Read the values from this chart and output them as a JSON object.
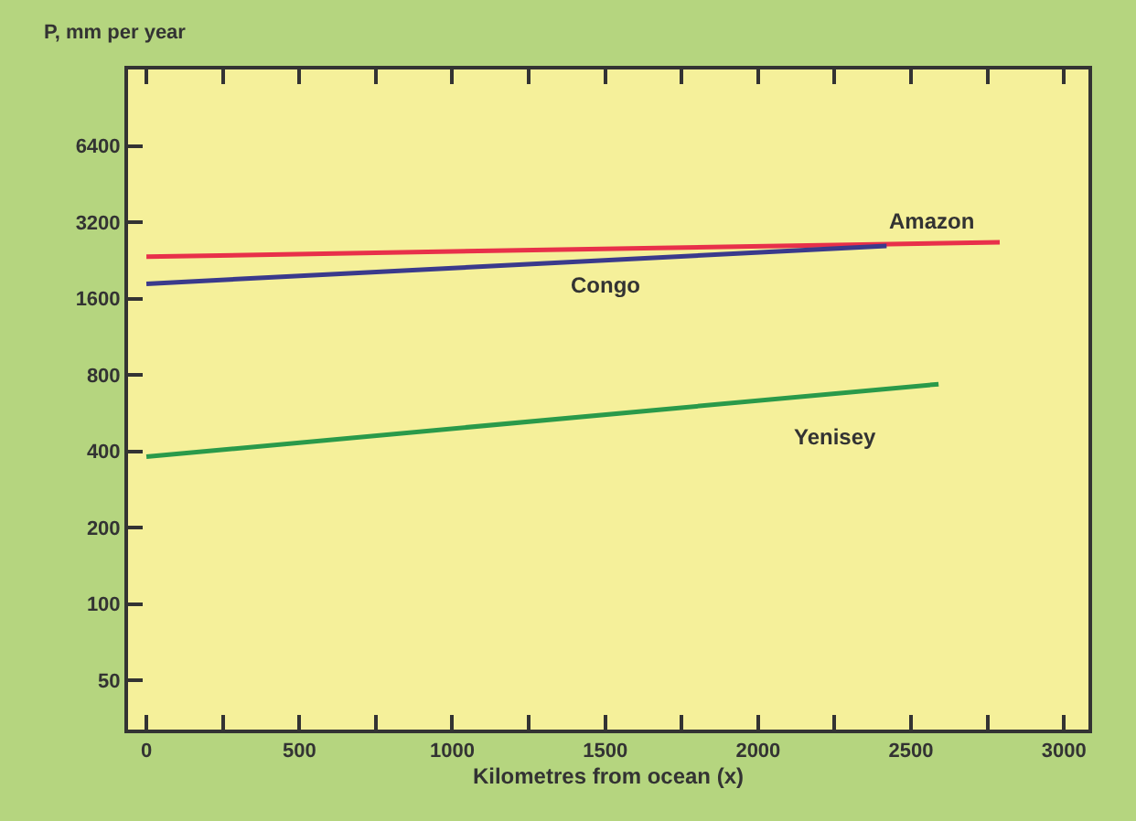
{
  "chart_data": {
    "type": "line",
    "xlabel": "Kilometres from ocean (x)",
    "ylabel": "P, mm per year",
    "log": "y",
    "xlim": [
      -60,
      3080
    ],
    "ylim": [
      32,
      12800
    ],
    "xticks": [
      0,
      500,
      1000,
      1500,
      2000,
      2500,
      3000
    ],
    "yticks": [
      50,
      100,
      200,
      400,
      800,
      1600,
      3200,
      6400
    ],
    "grid": false,
    "legend": false,
    "marker": "none",
    "line_style": "solid",
    "series": [
      {
        "name": "Amazon",
        "color": "#e8304a",
        "x": [
          0,
          2790
        ],
        "values": [
          2340,
          2670
        ]
      },
      {
        "name": "Congo",
        "color": "#3a3a8c",
        "x": [
          0,
          2420
        ],
        "values": [
          1830,
          2580
        ]
      },
      {
        "name": "Yenisey",
        "color": "#2a9a4a",
        "x": [
          0,
          2590
        ],
        "values": [
          381,
          736
        ]
      }
    ]
  }
}
